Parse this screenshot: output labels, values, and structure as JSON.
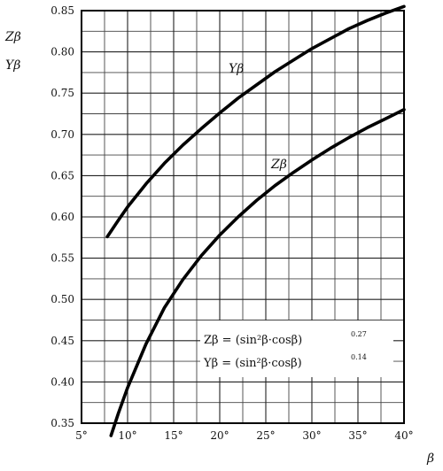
{
  "chart_data": {
    "type": "line",
    "title": "",
    "xlabel": "β",
    "ylabel_lines": [
      "Zβ",
      "Yβ"
    ],
    "xlim": [
      5,
      40
    ],
    "ylim": [
      0.35,
      0.85
    ],
    "x_ticks": [
      5,
      10,
      15,
      20,
      25,
      30,
      35,
      40
    ],
    "x_tick_labels": [
      "5°",
      "10°",
      "15°",
      "20°",
      "25°",
      "30°",
      "35°",
      "40°"
    ],
    "y_ticks": [
      0.35,
      0.4,
      0.45,
      0.5,
      0.55,
      0.6,
      0.65,
      0.7,
      0.75,
      0.8,
      0.85
    ],
    "y_tick_labels": [
      "0.35",
      "0.40",
      "0.45",
      "0.50",
      "0.55",
      "0.60",
      "0.65",
      "0.70",
      "0.75",
      "0.80",
      "0.85"
    ],
    "minor_grid_step_x": 2.5,
    "minor_grid_step_y": 0.025,
    "grid": true,
    "series": [
      {
        "name": "Yβ",
        "x": [
          7.8,
          9,
          10,
          12,
          14,
          16,
          18,
          20,
          22,
          24,
          26,
          28,
          30,
          32,
          34,
          36,
          38,
          40
        ],
        "y": [
          0.576,
          0.596,
          0.612,
          0.64,
          0.665,
          0.687,
          0.707,
          0.726,
          0.744,
          0.76,
          0.776,
          0.79,
          0.804,
          0.816,
          0.828,
          0.838,
          0.847,
          0.855
        ]
      },
      {
        "name": "Zβ",
        "x": [
          8.2,
          9,
          10,
          12,
          14,
          16,
          18,
          20,
          22,
          24,
          26,
          28,
          30,
          32,
          34,
          36,
          38,
          40
        ],
        "y": [
          0.335,
          0.362,
          0.393,
          0.446,
          0.49,
          0.524,
          0.553,
          0.578,
          0.6,
          0.62,
          0.638,
          0.654,
          0.669,
          0.683,
          0.696,
          0.708,
          0.719,
          0.73
        ]
      }
    ],
    "annotations": {
      "formula_z": "Zβ = (sin²β·cosβ)",
      "formula_z_exp": "0.27",
      "formula_y": "Yβ = (sin²β·cosβ)",
      "formula_y_exp": "0.14"
    }
  }
}
